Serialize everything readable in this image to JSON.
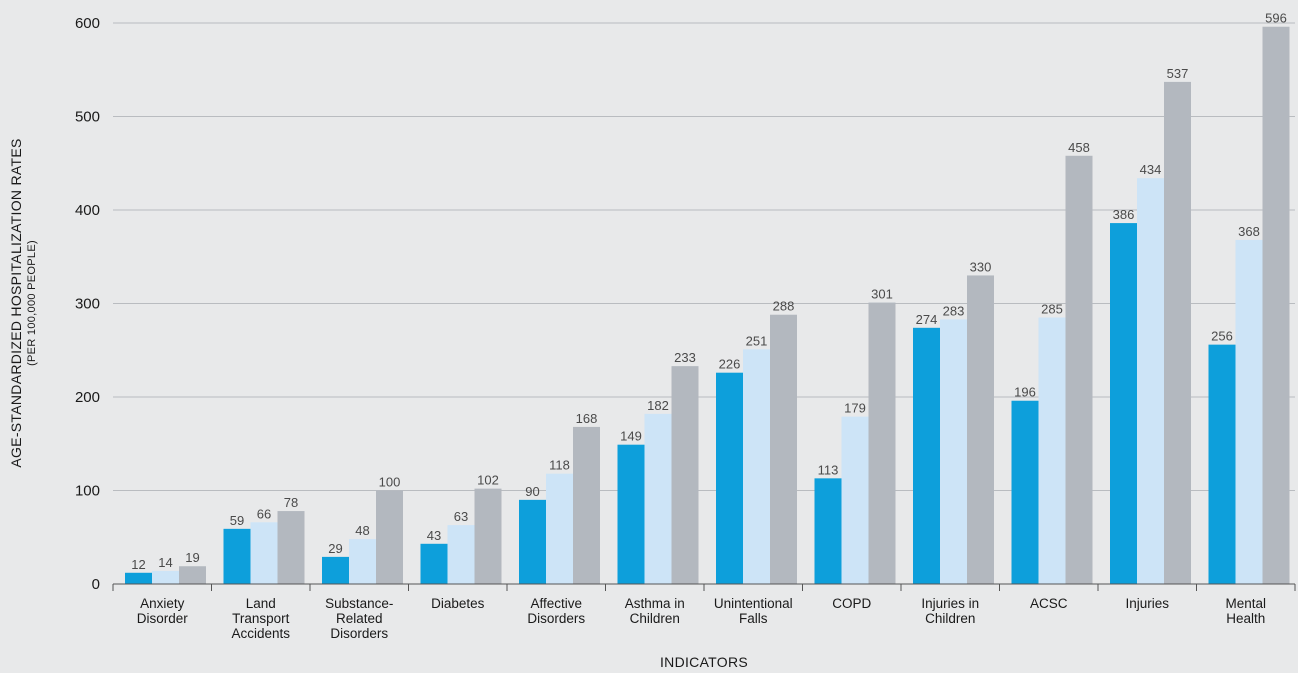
{
  "chart_data": {
    "type": "bar",
    "title": "",
    "xlabel": "INDICATORS",
    "ylabel": "AGE-STANDARDIZED HOSPITALIZATION RATES",
    "ylabel_sub": "(PER 100,000 PEOPLE)",
    "ylim": [
      0,
      600
    ],
    "yticks": [
      0,
      100,
      200,
      300,
      400,
      500,
      600
    ],
    "grid": true,
    "legend": "none",
    "categories": [
      [
        "Anxiety",
        "Disorder"
      ],
      [
        "Land",
        "Transport",
        "Accidents"
      ],
      [
        "Substance-",
        "Related",
        "Disorders"
      ],
      [
        "Diabetes"
      ],
      [
        "Affective",
        "Disorders"
      ],
      [
        "Asthma in",
        "Children"
      ],
      [
        "Unintentional",
        "Falls"
      ],
      [
        "COPD"
      ],
      [
        "Injuries in",
        "Children"
      ],
      [
        "ACSC"
      ],
      [
        "Injuries"
      ],
      [
        "Mental",
        "Health"
      ]
    ],
    "series": [
      {
        "color": "#0d9fdb",
        "values": [
          12,
          59,
          29,
          43,
          90,
          149,
          226,
          113,
          274,
          196,
          386,
          256
        ],
        "labels": [
          "12",
          "59",
          "29",
          "43",
          "90",
          "149",
          "226",
          "113",
          "274",
          "196",
          "386",
          "256"
        ]
      },
      {
        "color": "#cde4f7",
        "values": [
          14,
          66,
          48,
          63,
          118,
          182,
          251,
          179,
          283,
          285,
          434,
          368
        ],
        "labels": [
          "14",
          "66",
          "48",
          "63",
          "118",
          "182",
          "251",
          "179",
          "283",
          "285",
          "434",
          "368"
        ]
      },
      {
        "color": "#b3b8bf",
        "values": [
          19,
          78,
          100,
          102,
          168,
          233,
          288,
          301,
          330,
          458,
          537,
          596
        ],
        "labels": [
          "19",
          "78",
          "100",
          "102",
          "168",
          "233",
          "288",
          "301",
          "330",
          "458",
          "537",
          "596"
        ]
      }
    ]
  }
}
